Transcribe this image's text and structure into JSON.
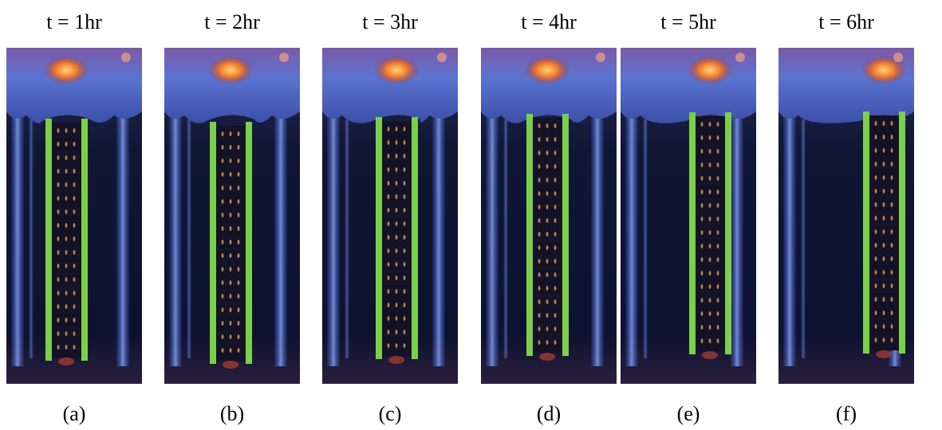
{
  "panels": [
    {
      "time": "t = 1hr",
      "label": "(a)"
    },
    {
      "time": "t = 2hr",
      "label": "(b)"
    },
    {
      "time": "t = 3hr",
      "label": "(c)"
    },
    {
      "time": "t = 4hr",
      "label": "(d)"
    },
    {
      "time": "t = 5hr",
      "label": "(e)"
    },
    {
      "time": "t = 6hr",
      "label": "(f)"
    }
  ]
}
